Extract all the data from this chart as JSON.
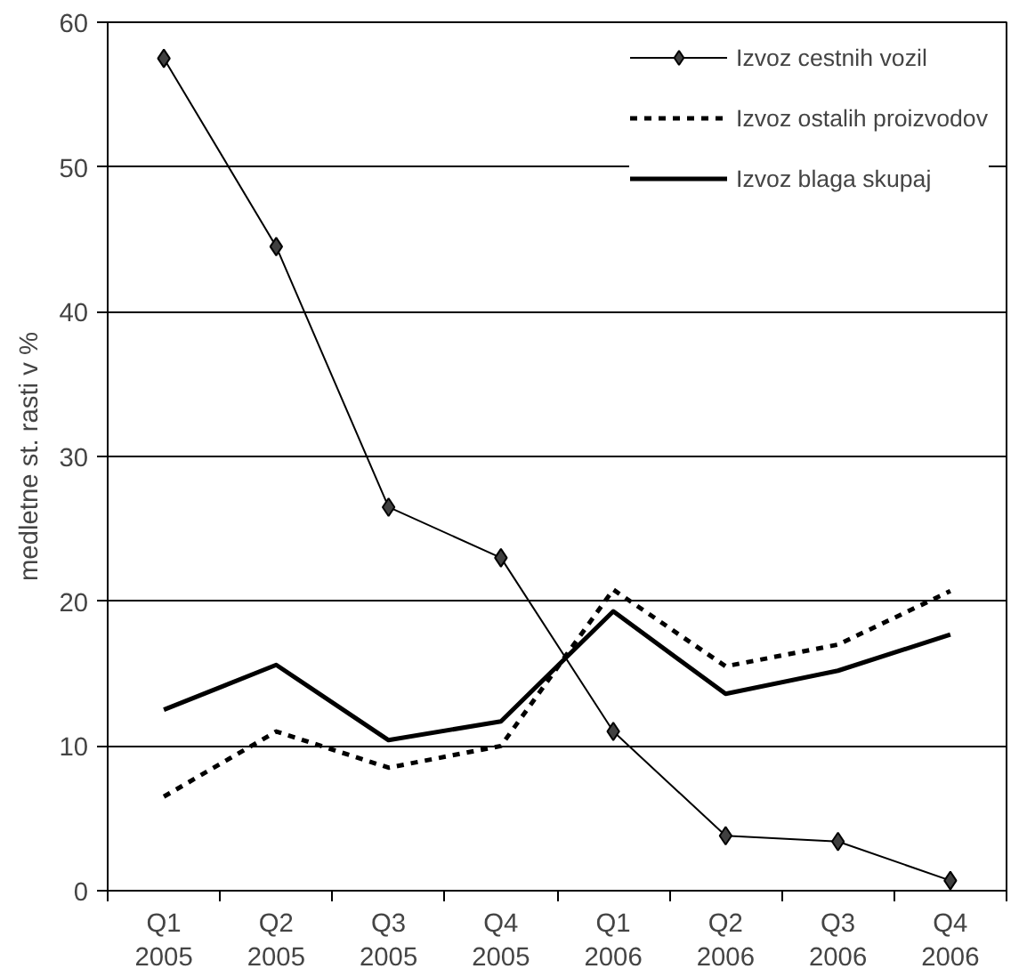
{
  "chart_data": {
    "type": "line",
    "ylabel": "medletne st. rasti v %",
    "categories": [
      "Q1\n2005",
      "Q2\n2005",
      "Q3\n2005",
      "Q4\n2005",
      "Q1\n2006",
      "Q2\n2006",
      "Q3\n2006",
      "Q4\n2006"
    ],
    "series": [
      {
        "name": "Izvoz cestnih vozil",
        "color": "#000000",
        "marker": "diamond",
        "line_style": "solid",
        "values": [
          57.5,
          44.5,
          26.5,
          23,
          11,
          3.8,
          3.4,
          0.7
        ]
      },
      {
        "name": "Izvoz ostalih proizvodov",
        "color": "#000000",
        "marker": "none",
        "line_style": "dashed",
        "values": [
          6.5,
          11,
          8.5,
          10,
          20.8,
          15.5,
          17,
          20.7
        ]
      },
      {
        "name": "Izvoz blaga skupaj",
        "color": "#000000",
        "marker": "none",
        "line_style": "solid",
        "values": [
          12.5,
          15.6,
          10.4,
          11.7,
          19.3,
          13.6,
          15.2,
          17.7
        ]
      }
    ],
    "ylim": [
      0,
      60
    ],
    "yticks": [
      0,
      10,
      20,
      30,
      40,
      50,
      60
    ],
    "grid": "y",
    "legend": "top right"
  }
}
